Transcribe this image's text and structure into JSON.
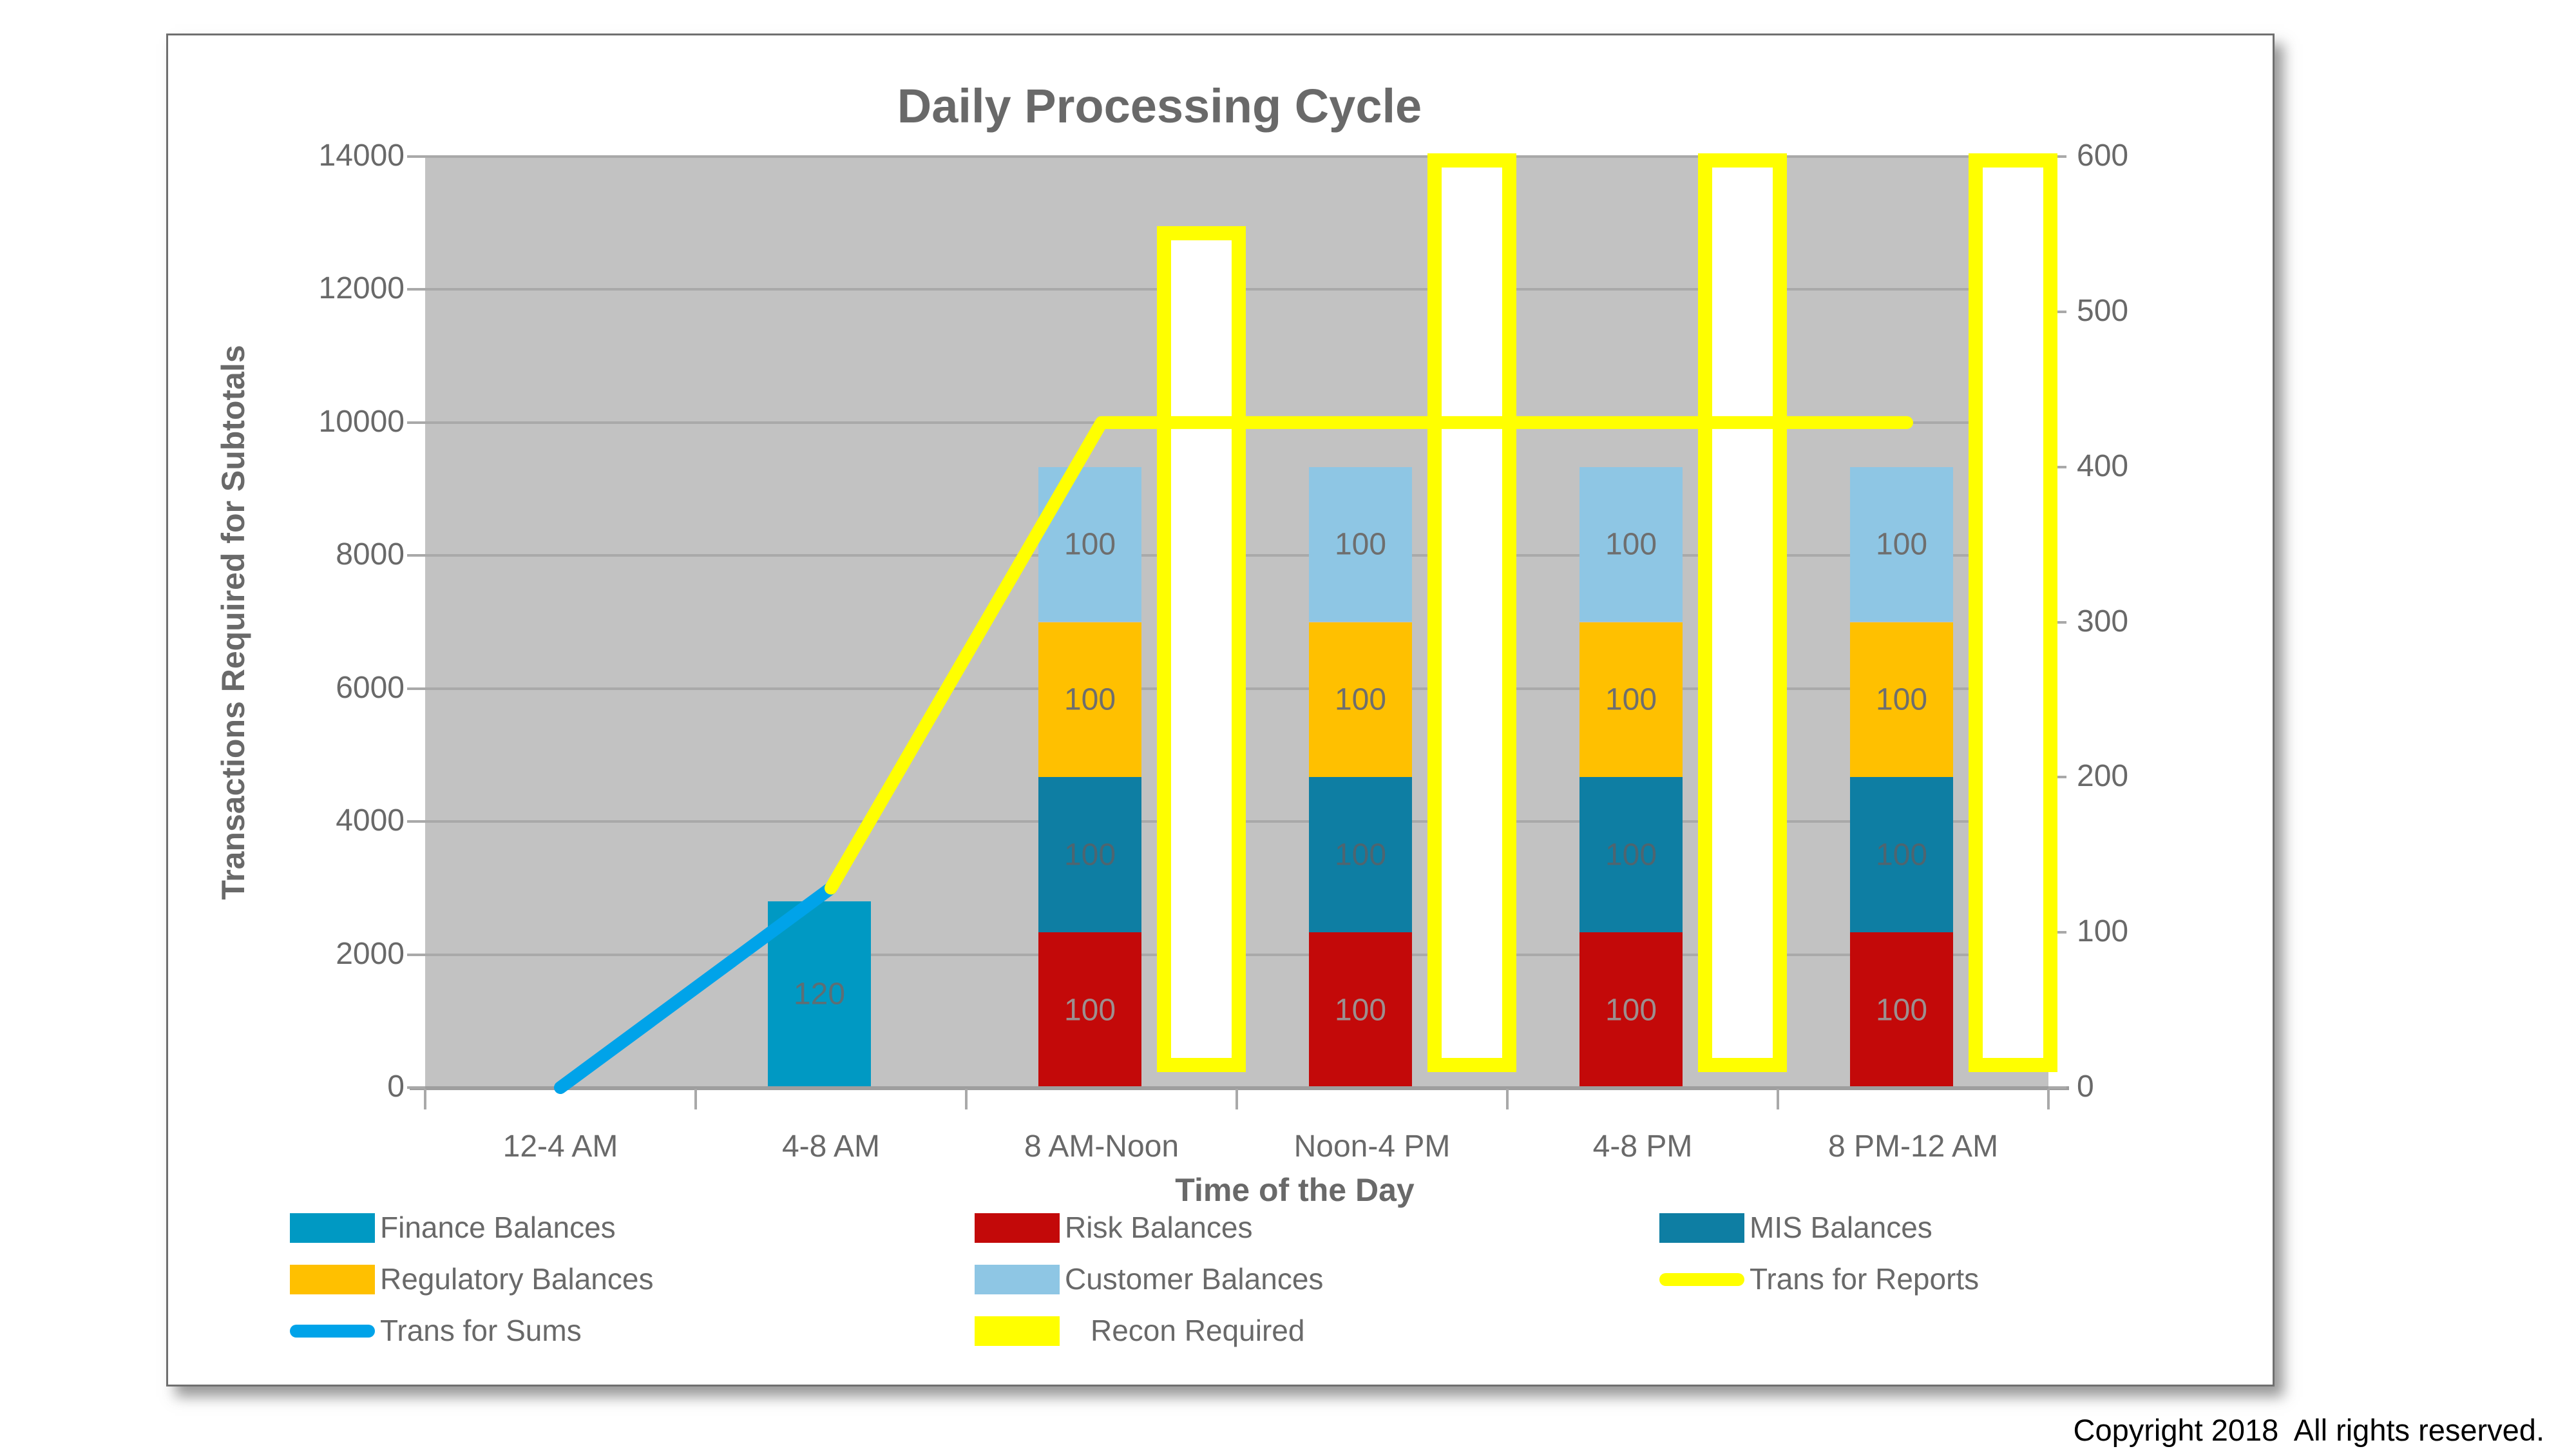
{
  "title": "Daily Processing Cycle",
  "copyright": "Copyright 2018  All rights reserved.",
  "chart_data": {
    "type": "bar",
    "categories": [
      "12-4 AM",
      "4-8 AM",
      "8 AM-Noon",
      "Noon-4 PM",
      "4-8 PM",
      "8 PM-12 AM"
    ],
    "x_axis": {
      "label": "Time of the Day"
    },
    "left_axis": {
      "label": "Transactions Required for Subtotals",
      "min": 0,
      "max": 14000,
      "step": 2000,
      "ticks": [
        0,
        2000,
        4000,
        6000,
        8000,
        10000,
        12000,
        14000
      ]
    },
    "right_axis": {
      "min": 0,
      "max": 600,
      "step": 100,
      "ticks": [
        0,
        100,
        200,
        300,
        400,
        500,
        600
      ]
    },
    "plot_background": "#C2C2C2",
    "gridline_color": "#A9A9A9",
    "grid": true,
    "legend_position": "bottom",
    "series": [
      {
        "name": "Finance Balances",
        "role": "bar",
        "axis": "right",
        "color": "#0099C3",
        "values": [
          null,
          120,
          null,
          null,
          null,
          null
        ],
        "label_color": "#5E6E74"
      },
      {
        "name": "Risk Balances",
        "role": "stack",
        "axis": "right",
        "color": "#C30909",
        "values": [
          null,
          null,
          100,
          100,
          100,
          100
        ],
        "label_color": "#9C8F8F"
      },
      {
        "name": "MIS Balances",
        "role": "stack",
        "axis": "right",
        "color": "#0E7EA3",
        "values": [
          null,
          null,
          100,
          100,
          100,
          100
        ],
        "label_color": "#4E6570"
      },
      {
        "name": "Regulatory Balances",
        "role": "stack",
        "axis": "right",
        "color": "#FFC000",
        "values": [
          null,
          null,
          100,
          100,
          100,
          100
        ],
        "label_color": "#6E6E6E"
      },
      {
        "name": "Customer Balances",
        "role": "stack",
        "axis": "right",
        "color": "#8EC6E4",
        "values": [
          null,
          null,
          100,
          100,
          100,
          100
        ],
        "label_color": "#6E6E6E"
      },
      {
        "name": "Recon Required",
        "role": "outline-bar",
        "axis": "right",
        "color": "#FFFF00",
        "fill": "#FFFFFF",
        "base": 10,
        "values": [
          null,
          null,
          555,
          602,
          602,
          602
        ]
      },
      {
        "name": "Trans for Sums",
        "role": "line",
        "axis": "left",
        "color": "#00A3E9",
        "values": [
          0,
          3000,
          null,
          null,
          null,
          null
        ]
      },
      {
        "name": "Trans for Reports",
        "role": "line",
        "axis": "left",
        "color": "#FFFF00",
        "values": [
          null,
          3000,
          10000,
          10000,
          10000,
          10000
        ]
      }
    ],
    "legend": {
      "rows": [
        [
          {
            "label": "Finance Balances",
            "swatch": "rect",
            "color": "#0099C3"
          },
          {
            "label": "Risk Balances",
            "swatch": "rect",
            "color": "#C30909"
          },
          {
            "label": "MIS Balances",
            "swatch": "rect",
            "color": "#0E7EA3"
          }
        ],
        [
          {
            "label": "Regulatory Balances",
            "swatch": "rect",
            "color": "#FFC000"
          },
          {
            "label": "Customer Balances",
            "swatch": "rect",
            "color": "#8EC6E4"
          },
          {
            "label": "Trans for Reports",
            "swatch": "line",
            "color": "#FFFF00"
          }
        ],
        [
          {
            "label": "Trans for Sums",
            "swatch": "line",
            "color": "#00A3E9"
          },
          {
            "label": "Recon Required",
            "swatch": "rect",
            "color": "#FFFF00",
            "text_gap": 40
          }
        ]
      ]
    }
  }
}
